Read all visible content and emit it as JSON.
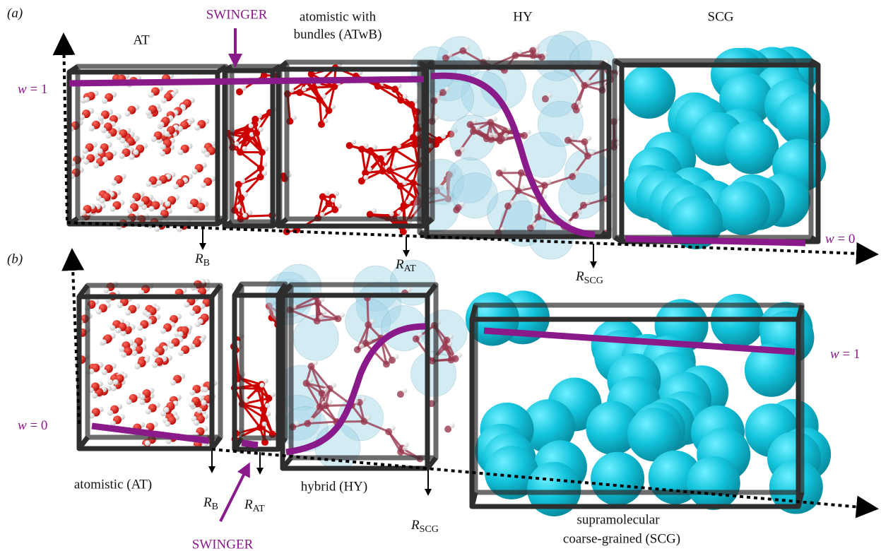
{
  "panel_a": {
    "label": "(a)",
    "region_at": "AT",
    "region_atwb_line1": "atomistic with",
    "region_atwb_line2": "bundles (ATwB)",
    "region_hy": "HY",
    "region_scg": "SCG",
    "swinger": "SWINGER",
    "w_left": {
      "symbol": "w",
      "value": "= 1"
    },
    "w_right": {
      "symbol": "w",
      "value": "= 0"
    },
    "r_b": {
      "symbol": "R",
      "subscript": "B"
    },
    "r_at": {
      "symbol": "R",
      "subscript": "AT"
    },
    "r_scg": {
      "symbol": "R",
      "subscript": "SCG"
    }
  },
  "panel_b": {
    "label": "(b)",
    "region_at": "atomistic (AT)",
    "region_hy": "hybrid (HY)",
    "region_scg_line1": "supramolecular",
    "region_scg_line2": "coarse-grained (SCG)",
    "swinger": "SWINGER",
    "w_left": {
      "symbol": "w",
      "value": "= 0"
    },
    "w_right": {
      "symbol": "w",
      "value": "= 1"
    },
    "r_b": {
      "symbol": "R",
      "subscript": "B"
    },
    "r_at": {
      "symbol": "R",
      "subscript": "AT"
    },
    "r_scg": {
      "symbol": "R",
      "subscript": "SCG"
    }
  }
}
